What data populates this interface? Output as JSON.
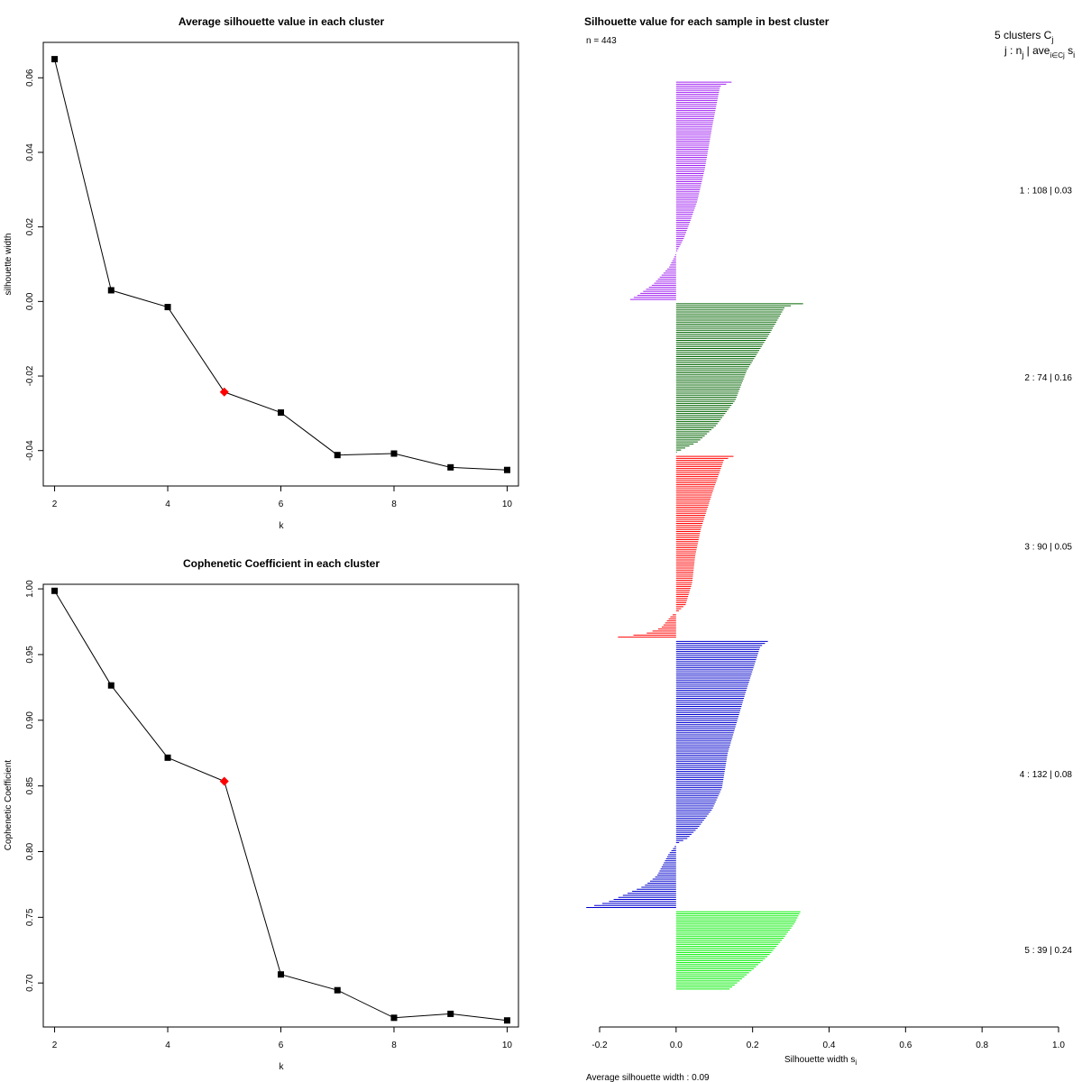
{
  "chart_data": [
    {
      "id": "avg-silhouette",
      "type": "line",
      "title": "Average silhouette value in each cluster",
      "xlabel": "k",
      "ylabel": "silhouette width",
      "xlim": [
        1.8,
        10.2
      ],
      "ylim": [
        -0.0495,
        0.0695
      ],
      "x_ticks": [
        2,
        4,
        6,
        8,
        10
      ],
      "y_ticks": [
        -0.04,
        -0.02,
        0.0,
        0.02,
        0.04,
        0.06
      ],
      "y_tick_labels": [
        "-0.04",
        "-0.02",
        "0.00",
        "0.02",
        "0.04",
        "0.06"
      ],
      "x": [
        2,
        3,
        4,
        5,
        6,
        7,
        8,
        9,
        10
      ],
      "values": [
        0.065,
        0.003,
        -0.0015,
        -0.0243,
        -0.0298,
        -0.0412,
        -0.0408,
        -0.0445,
        -0.0452
      ],
      "highlight_k": 5,
      "line_color": "#000000",
      "point_color": "#000000",
      "highlight_color": "#ff0000"
    },
    {
      "id": "cophenetic",
      "type": "line",
      "title": "Cophenetic Coefficient in each cluster",
      "xlabel": "k",
      "ylabel": "Cophenetic Coefficient",
      "xlim": [
        1.8,
        10.2
      ],
      "ylim": [
        0.6665,
        1.0035
      ],
      "x_ticks": [
        2,
        4,
        6,
        8,
        10
      ],
      "y_ticks": [
        0.7,
        0.75,
        0.8,
        0.85,
        0.9,
        0.95,
        1.0
      ],
      "y_tick_labels": [
        "0.70",
        "0.75",
        "0.80",
        "0.85",
        "0.90",
        "0.95",
        "1.00"
      ],
      "x": [
        2,
        3,
        4,
        5,
        6,
        7,
        8,
        9,
        10
      ],
      "values": [
        0.9985,
        0.9265,
        0.8715,
        0.8535,
        0.7065,
        0.6945,
        0.6735,
        0.6765,
        0.6715
      ],
      "highlight_k": 5,
      "line_color": "#000000",
      "point_color": "#000000",
      "highlight_color": "#ff0000"
    },
    {
      "id": "silhouette-plot",
      "type": "bar",
      "orientation": "horizontal",
      "title": "Silhouette value for each sample in best cluster",
      "n_label": "n = 443",
      "header_line1": "5  clusters  C",
      "header_sub1": "j",
      "header_line2": "j :  n",
      "header_sub2": "j",
      "header_line2b": " | ave",
      "header_sub2b": "i∈Cj",
      "header_line2c": " s",
      "header_sub2c": "i",
      "xlabel": "Silhouette width s",
      "xlabel_sub": "i",
      "xlim": [
        -0.2,
        1.0
      ],
      "x_ticks": [
        -0.2,
        0.0,
        0.2,
        0.4,
        0.6,
        0.8,
        1.0
      ],
      "x_tick_labels": [
        "-0.2",
        "0.0",
        "0.2",
        "0.4",
        "0.6",
        "0.8",
        "1.0"
      ],
      "footer": "Average silhouette width :  0.09",
      "clusters": [
        {
          "id": 1,
          "size": 108,
          "avg": 0.03,
          "label": "1 :   108  |  0.03",
          "color": "#a020f0",
          "profile": [
            [
              0,
              0.145
            ],
            [
              0.02,
              0.115
            ],
            [
              0.2,
              0.095
            ],
            [
              0.4,
              0.075
            ],
            [
              0.55,
              0.055
            ],
            [
              0.65,
              0.035
            ],
            [
              0.72,
              0.02
            ],
            [
              0.78,
              0.002
            ],
            [
              0.85,
              -0.018
            ],
            [
              0.93,
              -0.06
            ],
            [
              0.98,
              -0.1
            ],
            [
              1.0,
              -0.12
            ]
          ]
        },
        {
          "id": 2,
          "size": 74,
          "avg": 0.16,
          "label": "2 :   74  |  0.16",
          "color": "#006400",
          "profile": [
            [
              0,
              0.332
            ],
            [
              0.02,
              0.285
            ],
            [
              0.2,
              0.245
            ],
            [
              0.45,
              0.185
            ],
            [
              0.65,
              0.155
            ],
            [
              0.82,
              0.105
            ],
            [
              0.93,
              0.058
            ],
            [
              1.0,
              0.002
            ]
          ]
        },
        {
          "id": 3,
          "size": 90,
          "avg": 0.05,
          "label": "3 :   90  |  0.05",
          "color": "#ff0000",
          "profile": [
            [
              0,
              0.15
            ],
            [
              0.02,
              0.125
            ],
            [
              0.2,
              0.095
            ],
            [
              0.4,
              0.065
            ],
            [
              0.55,
              0.05
            ],
            [
              0.7,
              0.042
            ],
            [
              0.82,
              0.025
            ],
            [
              0.86,
              0.004
            ],
            [
              0.88,
              -0.012
            ],
            [
              0.95,
              -0.04
            ],
            [
              0.98,
              -0.08
            ],
            [
              1.0,
              -0.152
            ]
          ]
        },
        {
          "id": 4,
          "size": 132,
          "avg": 0.08,
          "label": "4 :   132  |  0.08",
          "color": "#0000cd",
          "profile": [
            [
              0,
              0.24
            ],
            [
              0.02,
              0.22
            ],
            [
              0.2,
              0.18
            ],
            [
              0.42,
              0.135
            ],
            [
              0.55,
              0.12
            ],
            [
              0.63,
              0.095
            ],
            [
              0.7,
              0.058
            ],
            [
              0.74,
              0.03
            ],
            [
              0.76,
              0.002
            ],
            [
              0.8,
              -0.02
            ],
            [
              0.88,
              -0.05
            ],
            [
              0.92,
              -0.085
            ],
            [
              0.98,
              -0.18
            ],
            [
              1.0,
              -0.235
            ]
          ]
        },
        {
          "id": 5,
          "size": 39,
          "avg": 0.24,
          "label": "5 :   39  |  0.24",
          "color": "#00ee00",
          "profile": [
            [
              0,
              0.325
            ],
            [
              0.15,
              0.31
            ],
            [
              0.35,
              0.28
            ],
            [
              0.55,
              0.245
            ],
            [
              0.75,
              0.2
            ],
            [
              0.9,
              0.165
            ],
            [
              1.0,
              0.14
            ]
          ]
        }
      ]
    }
  ]
}
